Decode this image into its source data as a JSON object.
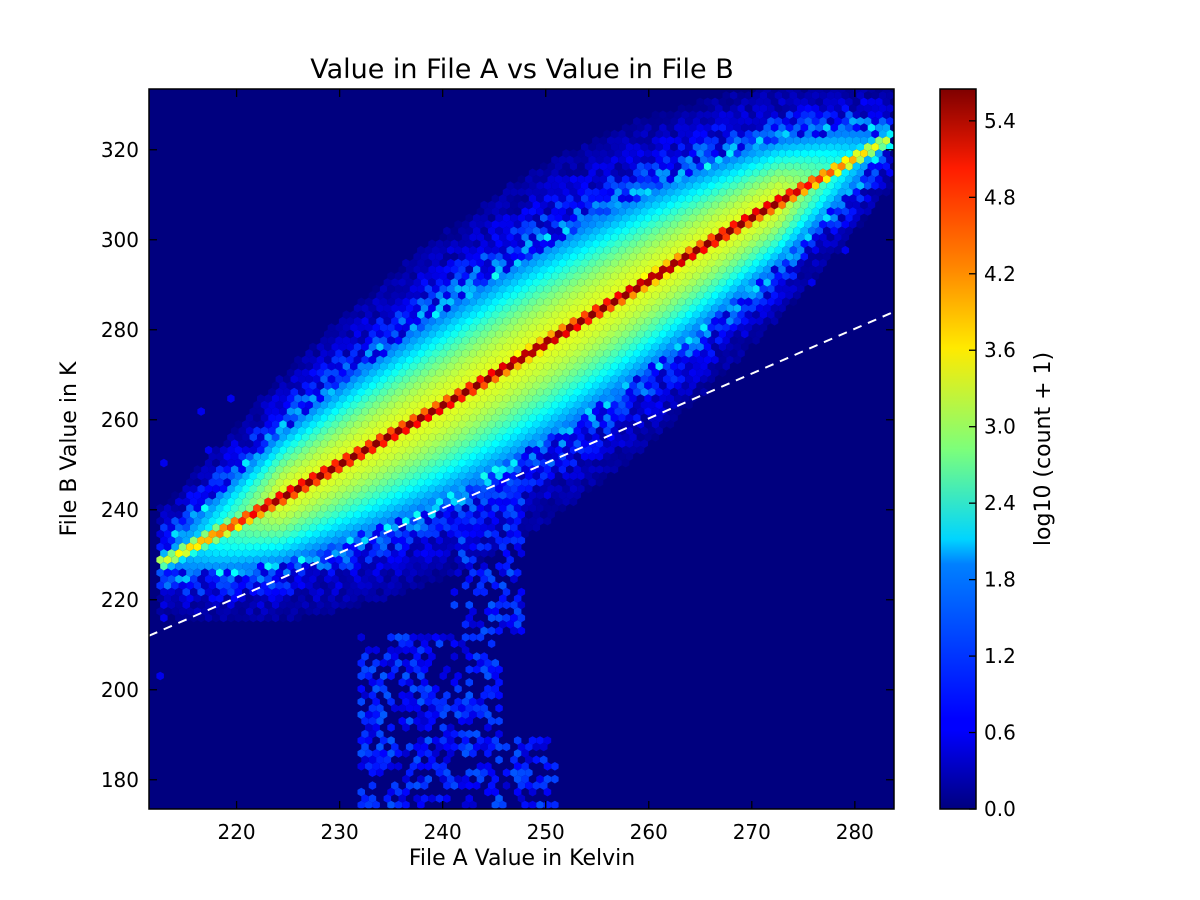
{
  "chart_data": {
    "type": "heatmap",
    "subtype": "hexbin",
    "title": "Value in File A vs Value in File B",
    "xlabel": "File A Value in Kelvin",
    "ylabel": "File B Value in K",
    "xlim": [
      211.5,
      283.8
    ],
    "ylim": [
      173.5,
      333.5
    ],
    "x_ticks": [
      220,
      230,
      240,
      250,
      260,
      270,
      280
    ],
    "y_ticks": [
      180,
      200,
      220,
      240,
      260,
      280,
      300,
      320
    ],
    "background_color": "#00007f",
    "colormap": "jet",
    "colorbar": {
      "label": "log10 (count + 1)",
      "range": [
        0.0,
        5.65
      ],
      "ticks": [
        "0.0",
        "0.6",
        "1.2",
        "1.8",
        "2.4",
        "3.0",
        "3.6",
        "4.2",
        "4.8",
        "5.4"
      ]
    },
    "main_band": {
      "description": "dense diagonal distribution",
      "ridge": [
        [
          213,
          228.5
        ],
        [
          220,
          237
        ],
        [
          230,
          250
        ],
        [
          240,
          263
        ],
        [
          250,
          277
        ],
        [
          260,
          291
        ],
        [
          270,
          305
        ],
        [
          283,
          322
        ]
      ],
      "peak_log_count": 5.6
    },
    "low_cluster": {
      "x_range": [
        232,
        251
      ],
      "y_range": [
        174,
        252
      ],
      "peak_log_count": 1.2
    },
    "reference_line": {
      "style": "dashed",
      "color": "#ffffff",
      "points": [
        [
          211.5,
          212
        ],
        [
          283.8,
          284
        ]
      ]
    },
    "grid": false,
    "legend": "none"
  }
}
